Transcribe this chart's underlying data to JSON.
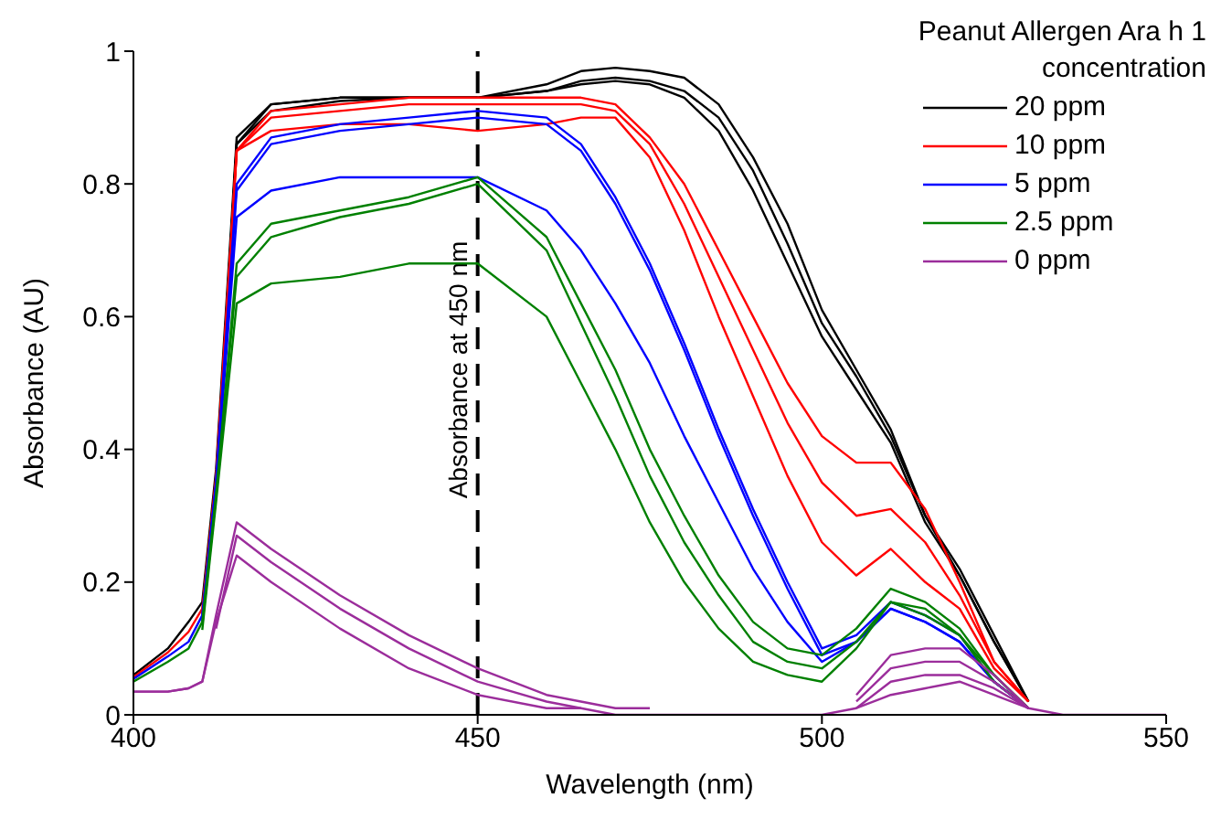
{
  "chart_data": {
    "type": "line",
    "xlabel": "Wavelength (nm)",
    "ylabel": "Absorbance (AU)",
    "legend_title": "Peanut Allergen Ara h 1 concentration",
    "legend": "top right",
    "grid": false,
    "marker": "none",
    "line_style": "solid",
    "x": [
      400,
      405,
      408,
      410,
      412,
      415,
      420,
      430,
      440,
      450,
      460,
      465,
      470,
      475,
      480,
      485,
      490,
      495,
      500,
      505,
      510,
      515,
      520,
      525,
      530,
      535,
      550
    ],
    "xlim": [
      400,
      550
    ],
    "xticks": [
      400,
      450,
      500,
      550
    ],
    "ylim": [
      0,
      1
    ],
    "yticks": [
      0,
      0.2,
      0.4,
      0.6,
      0.8,
      1
    ],
    "ref_lines": [
      {
        "axis": "x",
        "value": 450,
        "label": "Absorbance at 450 nm",
        "line_style": "dashed",
        "color": "#000000"
      }
    ],
    "series": [
      {
        "name": "20 ppm",
        "color": "#000000",
        "values": [
          0.06,
          0.1,
          0.14,
          0.17,
          0.37,
          0.87,
          0.92,
          0.93,
          0.93,
          0.93,
          0.95,
          0.97,
          0.975,
          0.97,
          0.96,
          0.92,
          0.84,
          0.74,
          0.61,
          0.52,
          0.43,
          0.3,
          0.22,
          0.12,
          0.02,
          null,
          null
        ]
      },
      {
        "color": "#000000",
        "values": [
          null,
          null,
          null,
          0.155,
          0.35,
          0.86,
          0.92,
          0.93,
          0.93,
          0.93,
          0.94,
          0.955,
          0.96,
          0.955,
          0.94,
          0.9,
          0.82,
          0.71,
          0.59,
          0.51,
          0.42,
          0.3,
          0.21,
          0.11,
          0.02,
          null,
          null
        ]
      },
      {
        "color": "#000000",
        "values": [
          null,
          null,
          null,
          0.145,
          0.34,
          0.86,
          0.91,
          0.925,
          0.93,
          0.93,
          0.94,
          0.95,
          0.955,
          0.95,
          0.93,
          0.88,
          0.79,
          0.68,
          0.57,
          0.49,
          0.41,
          0.29,
          0.21,
          0.11,
          0.02,
          null,
          null
        ]
      },
      {
        "name": "10 ppm",
        "color": "#ff0000",
        "values": [
          0.057,
          0.094,
          0.125,
          0.16,
          0.36,
          0.85,
          0.91,
          0.92,
          0.93,
          0.93,
          0.93,
          0.93,
          0.92,
          0.87,
          0.8,
          0.7,
          0.6,
          0.5,
          0.42,
          0.38,
          0.38,
          0.31,
          0.2,
          0.08,
          0.02,
          null,
          null
        ]
      },
      {
        "color": "#ff0000",
        "values": [
          null,
          null,
          null,
          0.152,
          0.35,
          0.85,
          0.9,
          0.91,
          0.92,
          0.92,
          0.92,
          0.92,
          0.91,
          0.86,
          0.77,
          0.66,
          0.55,
          0.44,
          0.35,
          0.3,
          0.31,
          0.26,
          0.18,
          0.08,
          0.02,
          null,
          null
        ]
      },
      {
        "color": "#ff0000",
        "values": [
          null,
          null,
          null,
          0.142,
          0.34,
          0.85,
          0.88,
          0.89,
          0.89,
          0.88,
          0.89,
          0.9,
          0.9,
          0.84,
          0.73,
          0.6,
          0.48,
          0.36,
          0.26,
          0.21,
          0.25,
          0.2,
          0.16,
          0.07,
          0.02,
          null,
          null
        ]
      },
      {
        "name": "5 ppm",
        "color": "#0000ff",
        "values": [
          0.054,
          0.088,
          0.11,
          0.15,
          0.35,
          0.8,
          0.87,
          0.89,
          0.9,
          0.91,
          0.9,
          0.86,
          0.78,
          0.68,
          0.56,
          0.43,
          0.31,
          0.2,
          0.1,
          0.12,
          0.17,
          0.15,
          0.12,
          0.05,
          0.01,
          null,
          null
        ]
      },
      {
        "color": "#0000ff",
        "values": [
          null,
          null,
          null,
          0.148,
          0.35,
          0.79,
          0.86,
          0.88,
          0.89,
          0.9,
          0.89,
          0.85,
          0.77,
          0.67,
          0.55,
          0.42,
          0.3,
          0.19,
          0.09,
          0.11,
          0.16,
          0.14,
          0.11,
          0.05,
          0.01,
          null,
          null
        ]
      },
      {
        "color": "#0000ff",
        "values": [
          null,
          null,
          null,
          0.138,
          0.34,
          0.75,
          0.79,
          0.81,
          0.81,
          0.81,
          0.76,
          0.7,
          0.62,
          0.53,
          0.42,
          0.32,
          0.22,
          0.14,
          0.08,
          0.11,
          0.16,
          0.14,
          0.11,
          0.05,
          0.01,
          null,
          null
        ]
      },
      {
        "name": "2.5 ppm",
        "color": "#008000",
        "values": [
          0.05,
          0.08,
          0.1,
          0.14,
          0.33,
          0.68,
          0.74,
          0.76,
          0.78,
          0.81,
          0.72,
          0.62,
          0.52,
          0.4,
          0.3,
          0.21,
          0.14,
          0.1,
          0.09,
          0.13,
          0.19,
          0.17,
          0.13,
          0.06,
          0.01,
          null,
          null
        ]
      },
      {
        "color": "#008000",
        "values": [
          null,
          null,
          null,
          0.135,
          0.33,
          0.66,
          0.72,
          0.75,
          0.77,
          0.8,
          0.7,
          0.59,
          0.48,
          0.36,
          0.26,
          0.18,
          0.11,
          0.08,
          0.07,
          0.11,
          0.17,
          0.16,
          0.12,
          0.06,
          0.01,
          null,
          null
        ]
      },
      {
        "color": "#008000",
        "values": [
          null,
          null,
          null,
          0.128,
          0.32,
          0.62,
          0.65,
          0.66,
          0.68,
          0.68,
          0.6,
          0.5,
          0.4,
          0.29,
          0.2,
          0.13,
          0.08,
          0.06,
          0.05,
          0.1,
          0.17,
          0.15,
          0.12,
          0.05,
          0.01,
          null,
          null
        ]
      },
      {
        "name": "0 ppm",
        "color": "#9b2d9b",
        "values": [
          0.035,
          0.035,
          0.04,
          0.05,
          0.15,
          0.29,
          0.25,
          0.18,
          0.12,
          0.07,
          0.03,
          0.02,
          0.01,
          0.01,
          null,
          null,
          null,
          null,
          null,
          0.03,
          0.09,
          0.1,
          0.1,
          0.06,
          0.01,
          null,
          null
        ]
      },
      {
        "color": "#9b2d9b",
        "values": [
          null,
          null,
          null,
          null,
          0.13,
          0.27,
          0.23,
          0.16,
          0.1,
          0.05,
          0.02,
          0.01,
          null,
          null,
          null,
          null,
          null,
          null,
          null,
          0.02,
          0.07,
          0.08,
          0.08,
          0.05,
          0.01,
          null,
          null
        ]
      },
      {
        "color": "#9b2d9b",
        "values": [
          null,
          null,
          null,
          null,
          null,
          null,
          null,
          null,
          null,
          null,
          null,
          null,
          null,
          null,
          null,
          null,
          null,
          null,
          null,
          0.01,
          0.05,
          0.06,
          0.06,
          0.04,
          0.01,
          null,
          null
        ]
      },
      {
        "color": "#9b2d9b",
        "values": [
          0.035,
          0.035,
          0.04,
          0.05,
          0.14,
          0.24,
          0.2,
          0.13,
          0.07,
          0.03,
          0.01,
          0.01,
          0,
          0,
          0,
          0,
          0,
          0,
          0,
          0.01,
          0.03,
          0.04,
          0.05,
          0.03,
          0.01,
          0,
          0
        ]
      }
    ]
  }
}
